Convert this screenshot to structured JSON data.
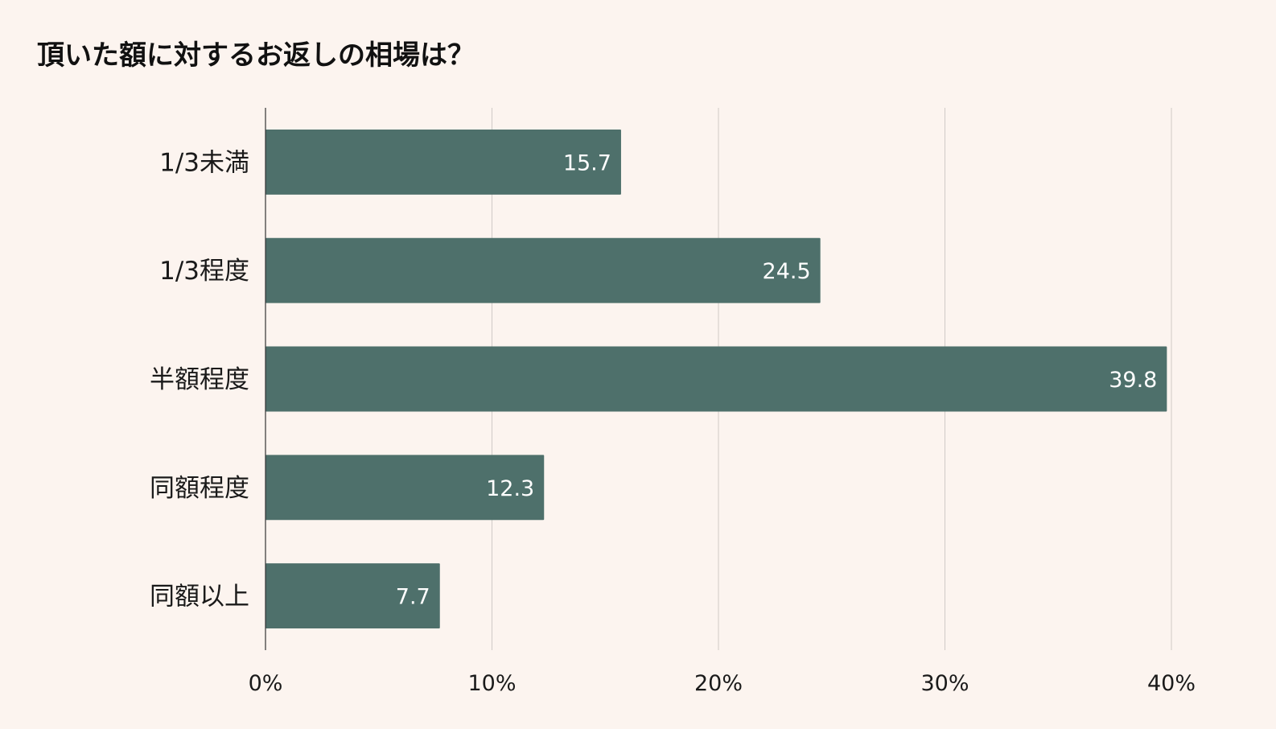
{
  "chart_data": {
    "type": "bar",
    "orientation": "horizontal",
    "title": "頂いた額に対するお返しの相場は？",
    "categories": [
      "1/3未満",
      "1/3程度",
      "半額程度",
      "同額程度",
      "同額以上"
    ],
    "values": [
      15.7,
      24.5,
      39.8,
      12.3,
      7.7
    ],
    "data_labels": [
      "15.7",
      "24.5",
      "39.8",
      "12.3",
      "7.7"
    ],
    "xlim": [
      0,
      40
    ],
    "x_ticks": [
      0,
      10,
      20,
      30,
      40
    ],
    "x_tick_labels": [
      "0%",
      "10%",
      "20%",
      "30%",
      "40%"
    ],
    "grid": true,
    "legend": "none",
    "colors": {
      "bar": "#4e706b",
      "background": "#fcf4ef",
      "grid": "#cfcac6",
      "axis": "#333333"
    }
  }
}
